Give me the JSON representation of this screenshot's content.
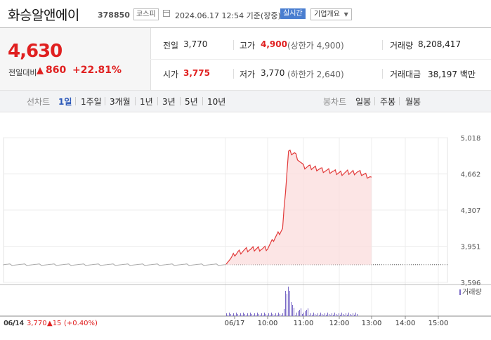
{
  "header": {
    "company": "화승알앤에이",
    "code": "378850",
    "market": "코스피",
    "datetime": "2024.06.17 12:54 기준(장중)",
    "realtime_badge": "실시간",
    "info_select": "기업개요"
  },
  "price": {
    "current": "4,630",
    "change_label": "전일대비",
    "change_amount": "860",
    "change_pct": "+22.81%",
    "up_color": "#e02020"
  },
  "stats": {
    "prev_label": "전일",
    "prev_value": "3,770",
    "high_label": "고가",
    "high_value": "4,900",
    "high_limit": "(상한가 4,900)",
    "volume_label": "거래량",
    "volume_value": "8,208,417",
    "open_label": "시가",
    "open_value": "3,775",
    "low_label": "저가",
    "low_value": "3,770",
    "low_limit": "(하한가 2,640)",
    "amount_label": "거래대금",
    "amount_value": "38,197 백만"
  },
  "tabs": {
    "line_label": "선차트",
    "line_periods": [
      "1일",
      "1주일",
      "3개월",
      "1년",
      "3년",
      "5년",
      "10년"
    ],
    "candle_label": "봉차트",
    "candle_periods": [
      "일봉",
      "주봉",
      "월봉"
    ]
  },
  "chart": {
    "volume_legend": "거래량",
    "footer_prev_date": "06/14",
    "footer_prev_close": "3,770",
    "footer_prev_change": "▲15",
    "footer_prev_pct": "(+0.40%)"
  },
  "chart_data": {
    "type": "line",
    "y_ticks": [
      "5,018",
      "4,662",
      "4,307",
      "3,951",
      "3,596"
    ],
    "ylim": [
      3596,
      5018
    ],
    "x_ticks": [
      "06/14",
      "06/17",
      "10:00",
      "11:00",
      "12:00",
      "13:00",
      "14:00",
      "15:00"
    ],
    "prev_close": 3770,
    "series": [
      {
        "values": [
          [
            "06/14",
            3770
          ],
          [
            "06/17 09:00",
            3775
          ],
          [
            "09:05",
            3880
          ],
          [
            "09:20",
            3910
          ],
          [
            "09:40",
            3925
          ],
          [
            "10:00",
            3935
          ],
          [
            "10:15",
            4050
          ],
          [
            "10:25",
            4120
          ],
          [
            "10:35",
            4880
          ],
          [
            "10:45",
            4870
          ],
          [
            "11:00",
            4730
          ],
          [
            "11:20",
            4720
          ],
          [
            "11:40",
            4690
          ],
          [
            "12:00",
            4670
          ],
          [
            "12:30",
            4680
          ],
          [
            "12:54",
            4630
          ]
        ]
      }
    ]
  }
}
